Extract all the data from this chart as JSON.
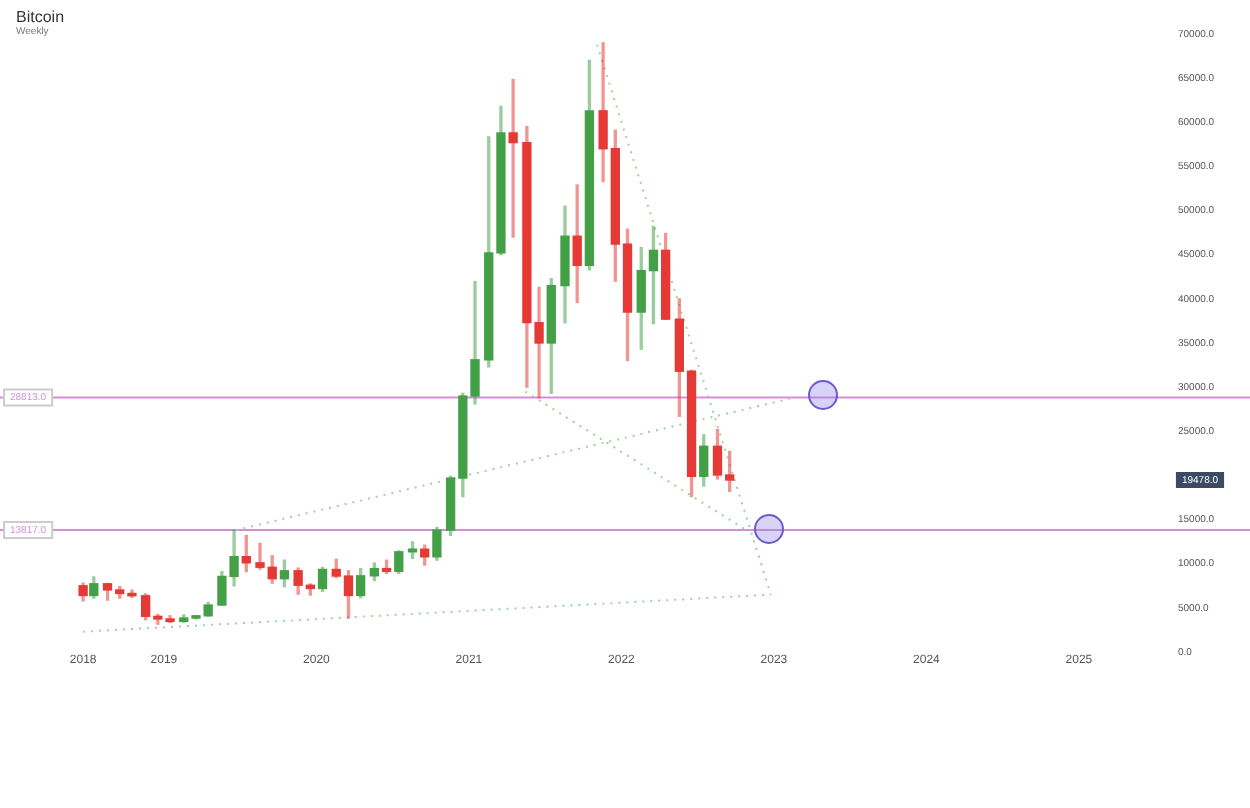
{
  "chart_data": {
    "type": "candlestick",
    "title": "Bitcoin",
    "subtitle": "Weekly",
    "x": [
      2018.47,
      2018.54,
      2018.63,
      2018.71,
      2018.79,
      2018.88,
      2018.96,
      2019.04,
      2019.13,
      2019.21,
      2019.29,
      2019.38,
      2019.46,
      2019.54,
      2019.63,
      2019.71,
      2019.79,
      2019.88,
      2019.96,
      2020.04,
      2020.13,
      2020.21,
      2020.29,
      2020.38,
      2020.46,
      2020.54,
      2020.63,
      2020.71,
      2020.79,
      2020.88,
      2020.96,
      2021.04,
      2021.13,
      2021.21,
      2021.29,
      2021.38,
      2021.46,
      2021.54,
      2021.63,
      2021.71,
      2021.79,
      2021.88,
      2021.96,
      2022.04,
      2022.13,
      2022.21,
      2022.29,
      2022.38,
      2022.46,
      2022.54,
      2022.63,
      2022.71
    ],
    "ohlc": [
      [
        7500,
        7800,
        5800,
        6400
      ],
      [
        6400,
        8500,
        6100,
        7730
      ],
      [
        7730,
        7760,
        5880,
        7030
      ],
      [
        7030,
        7400,
        6100,
        6630
      ],
      [
        6630,
        7000,
        6200,
        6370
      ],
      [
        6370,
        6580,
        3650,
        4040
      ],
      [
        4040,
        4250,
        3150,
        3740
      ],
      [
        3740,
        4100,
        3350,
        3460
      ],
      [
        3460,
        4200,
        3390,
        3850
      ],
      [
        3850,
        4100,
        3740,
        4100
      ],
      [
        4100,
        5600,
        4080,
        5320
      ],
      [
        5320,
        9100,
        5300,
        8560
      ],
      [
        8560,
        13800,
        7500,
        10800
      ],
      [
        10800,
        13200,
        9100,
        10100
      ],
      [
        10100,
        12300,
        9400,
        9600
      ],
      [
        9600,
        10900,
        7800,
        8300
      ],
      [
        8300,
        10400,
        7400,
        9200
      ],
      [
        9200,
        9500,
        6550,
        7560
      ],
      [
        7560,
        7700,
        6450,
        7190
      ],
      [
        7190,
        9570,
        6870,
        9350
      ],
      [
        9350,
        10500,
        8450,
        8600
      ],
      [
        8600,
        9200,
        3850,
        6400
      ],
      [
        6400,
        9450,
        6150,
        8630
      ],
      [
        8630,
        10080,
        8100,
        9450
      ],
      [
        9450,
        10400,
        8900,
        9140
      ],
      [
        9140,
        11450,
        8900,
        11350
      ],
      [
        11350,
        12480,
        10600,
        11650
      ],
      [
        11650,
        12100,
        9850,
        10780
      ],
      [
        10780,
        14100,
        10400,
        13800
      ],
      [
        13800,
        19900,
        13200,
        19700
      ],
      [
        19700,
        29300,
        17600,
        28990
      ],
      [
        28990,
        41950,
        28100,
        33100
      ],
      [
        33100,
        58350,
        32300,
        45200
      ],
      [
        45200,
        61800,
        45000,
        58800
      ],
      [
        58800,
        64850,
        47000,
        57700
      ],
      [
        57700,
        59500,
        30000,
        37300
      ],
      [
        37300,
        41300,
        28800,
        35000
      ],
      [
        35000,
        42300,
        29300,
        41500
      ],
      [
        41500,
        50500,
        37300,
        47100
      ],
      [
        47100,
        52900,
        39600,
        43800
      ],
      [
        43800,
        67000,
        43300,
        61300
      ],
      [
        61300,
        69000,
        53300,
        57000
      ],
      [
        57000,
        59100,
        42000,
        46200
      ],
      [
        46200,
        47900,
        33000,
        38500
      ],
      [
        38500,
        45800,
        34300,
        43200
      ],
      [
        43200,
        48200,
        37200,
        45500
      ],
      [
        45500,
        47400,
        37700,
        37700
      ],
      [
        37700,
        40000,
        26700,
        31800
      ],
      [
        31800,
        31900,
        17600,
        19900
      ],
      [
        19900,
        24600,
        18800,
        23300
      ],
      [
        23300,
        25200,
        19600,
        20050
      ],
      [
        20050,
        22700,
        18200,
        19478
      ]
    ],
    "colors": [
      "#e53935",
      "#43a047",
      "#e53935",
      "#e53935",
      "#e53935",
      "#e53935",
      "#e53935",
      "#e53935",
      "#43a047",
      "#43a047",
      "#43a047",
      "#43a047",
      "#43a047",
      "#e53935",
      "#e53935",
      "#e53935",
      "#43a047",
      "#e53935",
      "#e53935",
      "#43a047",
      "#e53935",
      "#e53935",
      "#43a047",
      "#43a047",
      "#e53935",
      "#43a047",
      "#43a047",
      "#e53935",
      "#43a047",
      "#43a047",
      "#43a047",
      "#43a047",
      "#43a047",
      "#43a047",
      "#e53935",
      "#e53935",
      "#e53935",
      "#43a047",
      "#43a047",
      "#e53935",
      "#43a047",
      "#e53935",
      "#e53935",
      "#e53935",
      "#43a047",
      "#43a047",
      "#e53935",
      "#e53935",
      "#e53935",
      "#43a047",
      "#e53935",
      "#e53935"
    ],
    "series": [
      {
        "type": "line",
        "color": "#9ed49e",
        "line_style": "dotted",
        "x": [
          2019.47,
          2023.13
        ],
        "values": [
          13800,
          28800
        ]
      },
      {
        "type": "line",
        "color": "#9ed49e",
        "line_style": "dotted",
        "x": [
          2021.84,
          2022.98
        ],
        "values": [
          68800,
          6500
        ]
      },
      {
        "type": "line",
        "color": "#9ed49e",
        "line_style": "dotted",
        "x": [
          2021.37,
          2022.82
        ],
        "values": [
          29500,
          13800
        ]
      },
      {
        "type": "line",
        "color": "#9ed49e",
        "line_style": "dotted",
        "x": [
          2018.47,
          2022.98
        ],
        "values": [
          2300,
          6500
        ]
      }
    ],
    "ref_lines": [
      {
        "axis": "y",
        "value": 28813,
        "label": "28813.0",
        "color": "#d68fd6"
      },
      {
        "axis": "y",
        "value": 13817,
        "label": "13817.0",
        "color": "#d68fd6"
      }
    ],
    "annotations": [
      "19478.0"
    ],
    "xlim": [
      2018.47,
      2025
    ],
    "ylim": [
      0,
      70000
    ],
    "xticks": [
      {
        "value": 2018.47,
        "label": "2018"
      },
      2019,
      2020,
      2021,
      2022,
      2023,
      2024,
      2025
    ],
    "yticks": [
      {
        "value": 0,
        "label": "0.0"
      },
      {
        "value": 5000,
        "label": "5000.0"
      },
      {
        "value": 10000,
        "label": "10000.0"
      },
      {
        "value": 15000,
        "label": "15000.0"
      },
      {
        "value": 25000,
        "label": "25000.0"
      },
      {
        "value": 30000,
        "label": "30000.0"
      },
      {
        "value": 35000,
        "label": "35000.0"
      },
      {
        "value": 40000,
        "label": "40000.0"
      },
      {
        "value": 45000,
        "label": "45000.0"
      },
      {
        "value": 50000,
        "label": "50000.0"
      },
      {
        "value": 55000,
        "label": "55000.0"
      },
      {
        "value": 60000,
        "label": "60000.0"
      },
      {
        "value": 65000,
        "label": "65000.0"
      },
      {
        "value": 70000,
        "label": "70000.0"
      }
    ],
    "grid": false,
    "legend": false
  }
}
